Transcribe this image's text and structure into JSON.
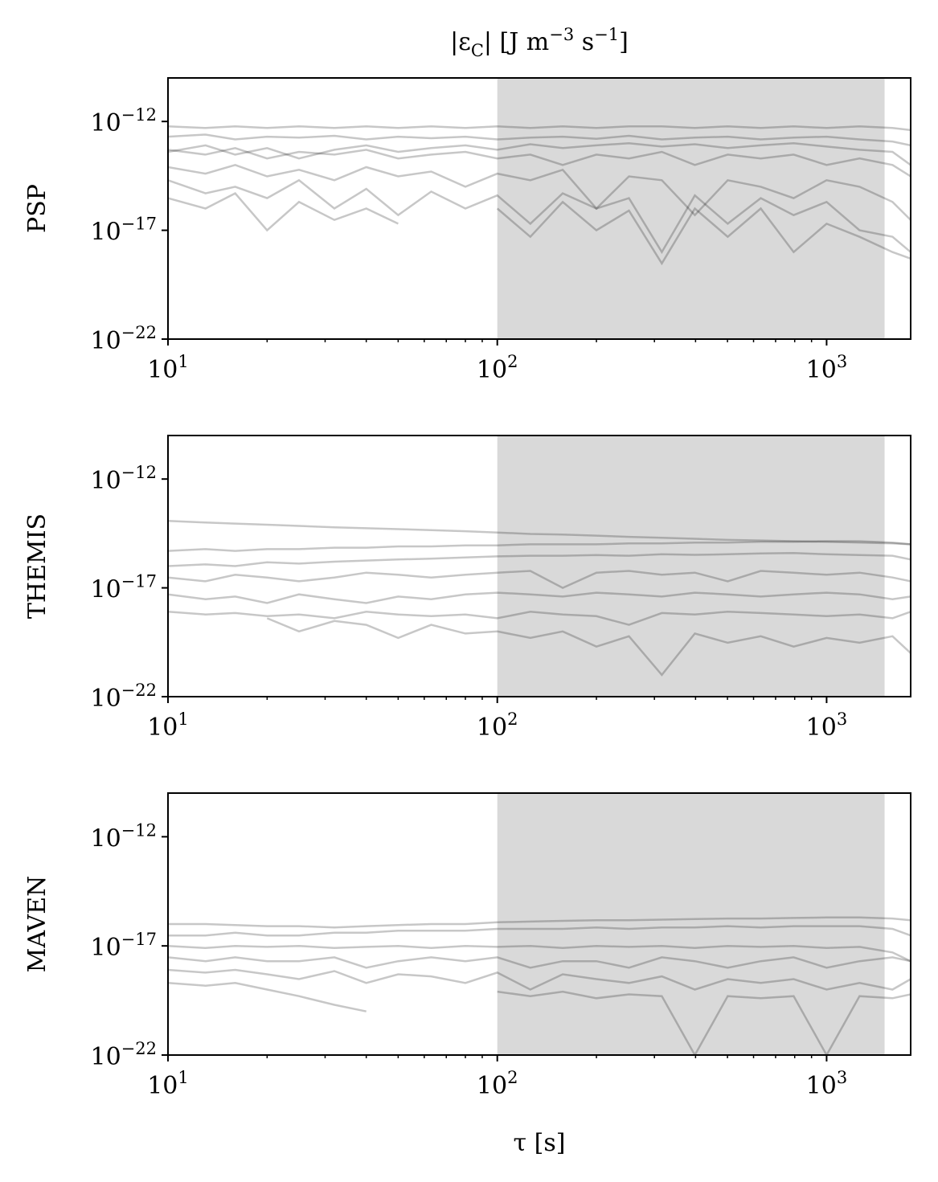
{
  "chart_data": [
    {
      "type": "line",
      "title": [
        "|ε",
        "C",
        "| [J m",
        "−3",
        " s",
        "−1",
        "]"
      ],
      "ylabel": "PSP",
      "xscale": "log",
      "yscale": "log",
      "xlim": [
        10,
        1800
      ],
      "ylim": [
        1e-22,
        1e-10
      ],
      "xticks": [
        {
          "value": 10,
          "label": "10",
          "exponent": "1"
        },
        {
          "value": 100,
          "label": "10",
          "exponent": "2"
        },
        {
          "value": 1000,
          "label": "10",
          "exponent": "3"
        }
      ],
      "xminor": [
        20,
        30,
        40,
        50,
        60,
        70,
        80,
        90,
        200,
        300,
        400,
        500,
        600,
        700,
        800,
        900
      ],
      "yticks": [
        {
          "value": 1e-22,
          "label": "10",
          "exponent": "−22"
        },
        {
          "value": 1e-17,
          "label": "10",
          "exponent": "−17"
        },
        {
          "value": 1e-12,
          "label": "10",
          "exponent": "−12"
        }
      ],
      "shade": [
        100,
        1500
      ],
      "shade_color": "#d9d9d9",
      "line_color": "#000000",
      "line_opacity": 0.22,
      "x": [
        10,
        13,
        16,
        20,
        25,
        32,
        40,
        50,
        63,
        80,
        100,
        126,
        158,
        200,
        251,
        316,
        398,
        501,
        631,
        794,
        1000,
        1259,
        1585,
        1800
      ],
      "series": [
        {
          "values": [
            6e-13,
            5e-13,
            6e-13,
            5e-13,
            6e-13,
            5e-13,
            6e-13,
            5e-13,
            6e-13,
            5e-13,
            6e-13,
            5e-13,
            6e-13,
            5e-13,
            6e-13,
            6e-13,
            5e-13,
            6e-13,
            5e-13,
            6e-13,
            5e-13,
            6e-13,
            5e-13,
            4e-13
          ]
        },
        {
          "values": [
            2e-13,
            2.5e-13,
            1.5e-13,
            2e-13,
            1.8e-13,
            2.2e-13,
            1.5e-13,
            2e-13,
            1.7e-13,
            2e-13,
            1.5e-13,
            1.8e-13,
            2e-13,
            1.6e-13,
            2.2e-13,
            1.5e-13,
            1.8e-13,
            2e-13,
            1.5e-13,
            1.8e-13,
            2e-13,
            1.5e-13,
            1.2e-13,
            8e-14
          ]
        },
        {
          "values": [
            5e-14,
            3e-14,
            6e-14,
            2e-14,
            4e-14,
            3e-14,
            5e-14,
            2e-14,
            3e-14,
            4e-14,
            2e-14,
            3e-14,
            1e-14,
            3e-14,
            2e-14,
            4e-14,
            1e-14,
            3e-14,
            2e-14,
            3e-14,
            1e-14,
            2e-14,
            1e-14,
            3e-15
          ]
        },
        {
          "values": [
            8e-15,
            4e-15,
            1e-14,
            3e-15,
            6e-15,
            2e-15,
            8e-15,
            3e-15,
            5e-15,
            1e-15,
            4e-15,
            2e-15,
            6e-15,
            1e-16,
            3e-15,
            2e-15,
            5e-17,
            2e-15,
            1e-15,
            3e-16,
            2e-15,
            1e-15,
            2e-16,
            3e-17
          ]
        },
        {
          "values": [
            2e-15,
            5e-16,
            1e-15,
            3e-16,
            2e-15,
            1e-16,
            8e-16,
            5e-17,
            6e-16,
            1e-16,
            4e-16,
            2e-17,
            5e-16,
            1e-16,
            3e-16,
            1e-18,
            4e-16,
            2e-17,
            3e-16,
            5e-17,
            2e-16,
            1e-17,
            5e-18,
            1e-18
          ]
        },
        {
          "values": [
            3e-16,
            1e-16,
            5e-16,
            1e-17,
            2e-16,
            3e-17,
            1e-16,
            2e-17,
            null,
            null,
            1e-16,
            5e-18,
            2e-16,
            1e-17,
            8e-17,
            3e-19,
            1e-16,
            5e-18,
            1e-16,
            1e-18,
            2e-17,
            5e-18,
            1e-18,
            5e-19
          ]
        },
        {
          "values": [
            4e-14,
            8e-14,
            3e-14,
            6e-14,
            2e-14,
            5e-14,
            8e-14,
            4e-14,
            6e-14,
            8e-14,
            5e-14,
            9e-14,
            6e-14,
            8e-14,
            1e-13,
            7e-14,
            9e-14,
            6e-14,
            8e-14,
            1e-13,
            7e-14,
            5e-14,
            4e-14,
            1e-14
          ]
        }
      ]
    },
    {
      "type": "line",
      "ylabel": "THEMIS",
      "xscale": "log",
      "yscale": "log",
      "xlim": [
        10,
        1800
      ],
      "ylim": [
        1e-22,
        1e-10
      ],
      "xticks": [
        {
          "value": 10,
          "label": "10",
          "exponent": "1"
        },
        {
          "value": 100,
          "label": "10",
          "exponent": "2"
        },
        {
          "value": 1000,
          "label": "10",
          "exponent": "3"
        }
      ],
      "xminor": [
        20,
        30,
        40,
        50,
        60,
        70,
        80,
        90,
        200,
        300,
        400,
        500,
        600,
        700,
        800,
        900
      ],
      "yticks": [
        {
          "value": 1e-22,
          "label": "10",
          "exponent": "−22"
        },
        {
          "value": 1e-17,
          "label": "10",
          "exponent": "−17"
        },
        {
          "value": 1e-12,
          "label": "10",
          "exponent": "−12"
        }
      ],
      "shade": [
        100,
        1500
      ],
      "shade_color": "#d9d9d9",
      "line_color": "#000000",
      "line_opacity": 0.22,
      "x": [
        10,
        13,
        16,
        20,
        25,
        32,
        40,
        50,
        63,
        80,
        100,
        126,
        158,
        200,
        251,
        316,
        398,
        501,
        631,
        794,
        1000,
        1259,
        1585,
        1800
      ],
      "series": [
        {
          "values": [
            1.2e-14,
            1e-14,
            9e-15,
            8e-15,
            7e-15,
            6e-15,
            5.5e-15,
            5e-15,
            4.5e-15,
            4e-15,
            3.5e-15,
            3e-15,
            2.8e-15,
            2.5e-15,
            2.2e-15,
            2e-15,
            1.8e-15,
            1.6e-15,
            1.5e-15,
            1.4e-15,
            1.3e-15,
            1.2e-15,
            1.1e-15,
            1e-15
          ]
        },
        {
          "values": [
            5e-16,
            6e-16,
            5e-16,
            6e-16,
            6e-16,
            7e-16,
            7e-16,
            8e-16,
            8e-16,
            9e-16,
            9e-16,
            1e-15,
            1e-15,
            1e-15,
            1.1e-15,
            1.1e-15,
            1.2e-15,
            1.2e-15,
            1.3e-15,
            1.3e-15,
            1.4e-15,
            1.4e-15,
            1.2e-15,
            1e-15
          ]
        },
        {
          "values": [
            1e-16,
            1.2e-16,
            1e-16,
            1.5e-16,
            1.3e-16,
            1.6e-16,
            1.8e-16,
            2e-16,
            2.2e-16,
            2.5e-16,
            2.8e-16,
            3e-16,
            3e-16,
            3.2e-16,
            3e-16,
            3.5e-16,
            3.3e-16,
            3.5e-16,
            3.8e-16,
            4e-16,
            3.5e-16,
            3.2e-16,
            3e-16,
            2e-16
          ]
        },
        {
          "values": [
            3e-17,
            2e-17,
            4e-17,
            3e-17,
            2e-17,
            3e-17,
            5e-17,
            4e-17,
            3e-17,
            4e-17,
            5e-17,
            6e-17,
            1e-17,
            5e-17,
            6e-17,
            4e-17,
            5e-17,
            2e-17,
            6e-17,
            5e-17,
            4e-17,
            5e-17,
            3e-17,
            2e-17
          ]
        },
        {
          "values": [
            5e-18,
            3e-18,
            4e-18,
            2e-18,
            5e-18,
            3e-18,
            2e-18,
            4e-18,
            3e-18,
            5e-18,
            6e-18,
            5e-18,
            4e-18,
            6e-18,
            5e-18,
            4e-18,
            6e-18,
            5e-18,
            4e-18,
            5e-18,
            6e-18,
            5e-18,
            3e-18,
            4e-18
          ]
        },
        {
          "values": [
            8e-19,
            6e-19,
            7e-19,
            5e-19,
            6e-19,
            4e-19,
            8e-19,
            6e-19,
            5e-19,
            6e-19,
            4e-19,
            8e-19,
            6e-19,
            5e-19,
            2e-19,
            7e-19,
            6e-19,
            8e-19,
            7e-19,
            6e-19,
            5e-19,
            6e-19,
            4e-19,
            8e-19
          ]
        },
        {
          "values": [
            null,
            null,
            null,
            4e-19,
            1e-19,
            3e-19,
            2e-19,
            5e-20,
            2e-19,
            8e-20,
            1e-19,
            5e-20,
            1e-19,
            2e-20,
            6e-20,
            1e-21,
            8e-20,
            3e-20,
            6e-20,
            2e-20,
            5e-20,
            3e-20,
            6e-20,
            1e-20
          ]
        }
      ]
    },
    {
      "type": "line",
      "ylabel": "MAVEN",
      "xlabel": "τ [s]",
      "xscale": "log",
      "yscale": "log",
      "xlim": [
        10,
        1800
      ],
      "ylim": [
        1e-22,
        1e-10
      ],
      "xticks": [
        {
          "value": 10,
          "label": "10",
          "exponent": "1"
        },
        {
          "value": 100,
          "label": "10",
          "exponent": "2"
        },
        {
          "value": 1000,
          "label": "10",
          "exponent": "3"
        }
      ],
      "xminor": [
        20,
        30,
        40,
        50,
        60,
        70,
        80,
        90,
        200,
        300,
        400,
        500,
        600,
        700,
        800,
        900
      ],
      "yticks": [
        {
          "value": 1e-22,
          "label": "10",
          "exponent": "−22"
        },
        {
          "value": 1e-17,
          "label": "10",
          "exponent": "−17"
        },
        {
          "value": 1e-12,
          "label": "10",
          "exponent": "−12"
        }
      ],
      "shade": [
        100,
        1500
      ],
      "shade_color": "#d9d9d9",
      "line_color": "#000000",
      "line_opacity": 0.22,
      "x": [
        10,
        13,
        16,
        20,
        25,
        32,
        40,
        50,
        63,
        80,
        100,
        126,
        158,
        200,
        251,
        316,
        398,
        501,
        631,
        794,
        1000,
        1259,
        1585,
        1800
      ],
      "series": [
        {
          "values": [
            1e-16,
            1e-16,
            9e-17,
            8e-17,
            8e-17,
            7e-17,
            8e-17,
            9e-17,
            1e-16,
            1e-16,
            1.2e-16,
            1.3e-16,
            1.4e-16,
            1.5e-16,
            1.5e-16,
            1.6e-16,
            1.7e-16,
            1.8e-16,
            1.8e-16,
            1.9e-16,
            2e-16,
            2e-16,
            1.8e-16,
            1.5e-16
          ]
        },
        {
          "values": [
            3e-17,
            3e-17,
            4e-17,
            3e-17,
            3e-17,
            4e-17,
            4e-17,
            5e-17,
            5e-17,
            5e-17,
            6e-17,
            6e-17,
            6e-17,
            7e-17,
            6e-17,
            7e-17,
            7e-17,
            8e-17,
            7e-17,
            8e-17,
            8e-17,
            8e-17,
            6e-17,
            3e-17
          ]
        },
        {
          "values": [
            1e-17,
            8e-18,
            1e-17,
            9e-18,
            1e-17,
            8e-18,
            9e-18,
            1e-17,
            8e-18,
            1e-17,
            9e-18,
            1e-17,
            8e-18,
            1e-17,
            9e-18,
            1e-17,
            8e-18,
            1e-17,
            9e-18,
            1e-17,
            8e-18,
            9e-18,
            5e-18,
            2e-18
          ]
        },
        {
          "values": [
            3e-18,
            2e-18,
            3e-18,
            2e-18,
            2e-18,
            3e-18,
            1e-18,
            2e-18,
            3e-18,
            2e-18,
            3e-18,
            1e-18,
            2e-18,
            2e-18,
            1e-18,
            3e-18,
            2e-18,
            1e-18,
            2e-18,
            3e-18,
            1e-18,
            2e-18,
            3e-18,
            2e-18
          ]
        },
        {
          "values": [
            8e-19,
            6e-19,
            8e-19,
            5e-19,
            3e-19,
            7e-19,
            2e-19,
            5e-19,
            4e-19,
            2e-19,
            6e-19,
            1e-19,
            5e-19,
            3e-19,
            2e-19,
            4e-19,
            1e-19,
            3e-19,
            2e-19,
            3e-19,
            1e-19,
            2e-19,
            1e-19,
            3e-19
          ]
        },
        {
          "values": [
            2e-19,
            1.5e-19,
            2e-19,
            1e-19,
            5e-20,
            2e-20,
            1e-20,
            null,
            null,
            null,
            8e-20,
            5e-20,
            8e-20,
            4e-20,
            6e-20,
            5e-20,
            1e-22,
            5e-20,
            4e-20,
            5e-20,
            1e-22,
            5e-20,
            4e-20,
            6e-20
          ]
        }
      ]
    }
  ]
}
